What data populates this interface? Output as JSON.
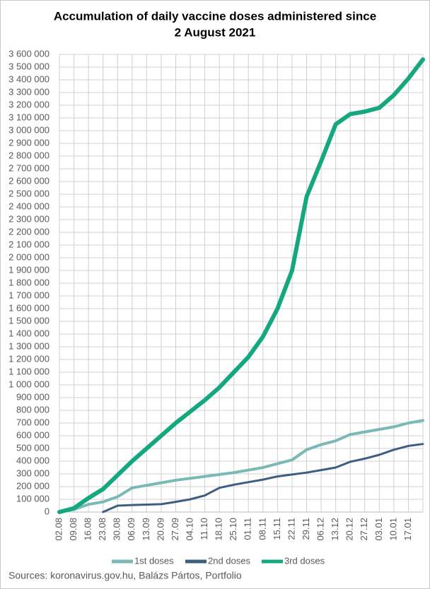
{
  "chart_data": {
    "type": "line",
    "title": [
      "Accumulation of daily vaccine doses administered since",
      "2 August 2021"
    ],
    "source": "Sources: koronavirus.gov.hu, Balázs Pártos, Portfolio",
    "categories": [
      "02.08",
      "09.08",
      "16.08",
      "23.08",
      "30.08",
      "06.09",
      "13.09",
      "20.09",
      "27.09",
      "04.10",
      "11.10",
      "18.10",
      "25.10",
      "01.11",
      "08.11",
      "15.11",
      "22.11",
      "29.11",
      "06.12",
      "13.12",
      "20.12",
      "27.12",
      "03.01",
      "10.01",
      "17.01",
      null
    ],
    "series": [
      {
        "name": "1st doses",
        "color": "#7ab9b6",
        "values": [
          0,
          20000,
          60000,
          80000,
          120000,
          190000,
          210000,
          230000,
          250000,
          265000,
          280000,
          295000,
          310000,
          330000,
          350000,
          380000,
          410000,
          490000,
          530000,
          560000,
          610000,
          630000,
          650000,
          670000,
          700000,
          720000
        ]
      },
      {
        "name": "2nd doses",
        "color": "#3d5e80",
        "values": [
          null,
          null,
          null,
          0,
          50000,
          55000,
          58000,
          62000,
          80000,
          100000,
          130000,
          190000,
          215000,
          235000,
          255000,
          280000,
          295000,
          310000,
          330000,
          350000,
          395000,
          420000,
          450000,
          490000,
          520000,
          535000
        ]
      },
      {
        "name": "3rd doses",
        "color": "#15a880",
        "values": [
          0,
          30000,
          110000,
          180000,
          290000,
          400000,
          500000,
          600000,
          700000,
          790000,
          880000,
          980000,
          1100000,
          1220000,
          1380000,
          1600000,
          1900000,
          2480000,
          2760000,
          3050000,
          3130000,
          3150000,
          3180000,
          3280000,
          3410000,
          3560000
        ]
      }
    ],
    "ylim": [
      0,
      3600000
    ],
    "yticks": [
      0,
      {
        "value": 100000,
        "label": "100 000"
      },
      {
        "value": 200000,
        "label": "200 000"
      },
      {
        "value": 300000,
        "label": "300 000"
      },
      {
        "value": 400000,
        "label": "400 000"
      },
      {
        "value": 500000,
        "label": "500 000"
      },
      {
        "value": 600000,
        "label": "600 000"
      },
      {
        "value": 700000,
        "label": "700 000"
      },
      {
        "value": 800000,
        "label": "800 000"
      },
      {
        "value": 900000,
        "label": "900 000"
      },
      {
        "value": 1000000,
        "label": "1 000 000"
      },
      {
        "value": 1100000,
        "label": "1 100 000"
      },
      {
        "value": 1200000,
        "label": "1 200 000"
      },
      {
        "value": 1300000,
        "label": "1 300 000"
      },
      {
        "value": 1400000,
        "label": "1 400 000"
      },
      {
        "value": 1500000,
        "label": "1 500 000"
      },
      {
        "value": 1600000,
        "label": "1 600 000"
      },
      {
        "value": 1700000,
        "label": "1 700 000"
      },
      {
        "value": 1800000,
        "label": "1 800 000"
      },
      {
        "value": 1900000,
        "label": "1 900 000"
      },
      {
        "value": 2000000,
        "label": "2 000 000"
      },
      {
        "value": 2100000,
        "label": "2 100 000"
      },
      {
        "value": 2200000,
        "label": "2 200 000"
      },
      {
        "value": 2300000,
        "label": "2 300 000"
      },
      {
        "value": 2400000,
        "label": "2 400 000"
      },
      {
        "value": 2500000,
        "label": "2 500 000"
      },
      {
        "value": 2600000,
        "label": "2 600 000"
      },
      {
        "value": 2700000,
        "label": "2 700 000"
      },
      {
        "value": 2800000,
        "label": "2 800 000"
      },
      {
        "value": 2900000,
        "label": "2 900 000"
      },
      {
        "value": 3000000,
        "label": "3 000 000"
      },
      {
        "value": 3100000,
        "label": "3 100 000"
      },
      {
        "value": 3200000,
        "label": "3 200 000"
      },
      {
        "value": 3300000,
        "label": "3 300 000"
      },
      {
        "value": 3400000,
        "label": "3 400 000"
      },
      {
        "value": 3500000,
        "label": "3 500 000"
      },
      {
        "value": 3600000,
        "label": "3 600 000"
      }
    ],
    "grid": true
  }
}
